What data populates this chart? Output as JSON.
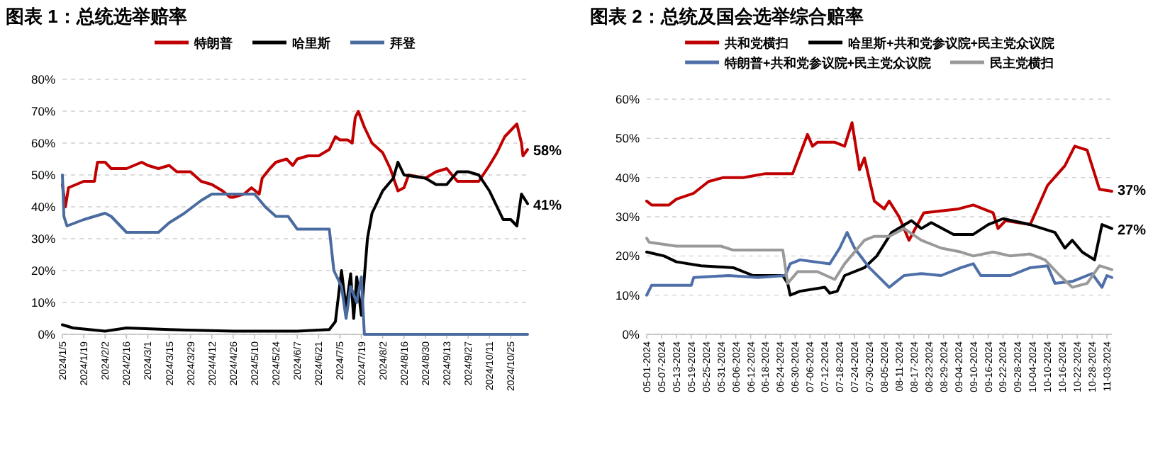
{
  "chart_data": [
    {
      "type": "line",
      "title": "图表 1：总统选举赔率",
      "legend": "top",
      "grid": "y",
      "xlim": [
        "2024-01-05",
        "2024-11-05"
      ],
      "ylim": [
        0,
        80
      ],
      "yticks": [
        {
          "value": 0,
          "label": "0%"
        },
        {
          "value": 10,
          "label": "10%"
        },
        {
          "value": 20,
          "label": "20%"
        },
        {
          "value": 30,
          "label": "30%"
        },
        {
          "value": 40,
          "label": "40%"
        },
        {
          "value": 50,
          "label": "50%"
        },
        {
          "value": 60,
          "label": "60%"
        },
        {
          "value": 70,
          "label": "70%"
        },
        {
          "value": 80,
          "label": "80%"
        }
      ],
      "xticks": [
        {
          "value": "2024-01-05",
          "label": "2024/1/5"
        },
        {
          "value": "2024-01-19",
          "label": "2024/1/19"
        },
        {
          "value": "2024-02-02",
          "label": "2024/2/2"
        },
        {
          "value": "2024-02-16",
          "label": "2024/2/16"
        },
        {
          "value": "2024-03-01",
          "label": "2024/3/1"
        },
        {
          "value": "2024-03-15",
          "label": "2024/3/15"
        },
        {
          "value": "2024-03-29",
          "label": "2024/3/29"
        },
        {
          "value": "2024-04-12",
          "label": "2024/4/12"
        },
        {
          "value": "2024-04-26",
          "label": "2024/4/26"
        },
        {
          "value": "2024-05-10",
          "label": "2024/5/10"
        },
        {
          "value": "2024-05-24",
          "label": "2024/5/24"
        },
        {
          "value": "2024-06-07",
          "label": "2024/6/7"
        },
        {
          "value": "2024-06-21",
          "label": "2024/6/21"
        },
        {
          "value": "2024-07-05",
          "label": "2024/7/5"
        },
        {
          "value": "2024-07-19",
          "label": "2024/7/19"
        },
        {
          "value": "2024-08-02",
          "label": "2024/8/2"
        },
        {
          "value": "2024-08-16",
          "label": "2024/8/16"
        },
        {
          "value": "2024-08-30",
          "label": "2024/8/30"
        },
        {
          "value": "2024-09-13",
          "label": "2024/9/13"
        },
        {
          "value": "2024-09-27",
          "label": "2024/9/27"
        },
        {
          "value": "2024-10-11",
          "label": "2024/10/11"
        },
        {
          "value": "2024-10-25",
          "label": "2024/10/25"
        }
      ],
      "series": [
        {
          "name": "特朗普",
          "color": "#c00000",
          "x": [
            "2024-01-05",
            "2024-01-07",
            "2024-01-09",
            "2024-01-14",
            "2024-01-19",
            "2024-01-26",
            "2024-01-28",
            "2024-02-02",
            "2024-02-06",
            "2024-02-16",
            "2024-02-26",
            "2024-03-01",
            "2024-03-08",
            "2024-03-15",
            "2024-03-20",
            "2024-03-29",
            "2024-04-05",
            "2024-04-12",
            "2024-04-19",
            "2024-04-24",
            "2024-04-26",
            "2024-05-03",
            "2024-05-08",
            "2024-05-13",
            "2024-05-15",
            "2024-05-20",
            "2024-05-24",
            "2024-05-31",
            "2024-06-04",
            "2024-06-07",
            "2024-06-14",
            "2024-06-21",
            "2024-06-28",
            "2024-07-02",
            "2024-07-05",
            "2024-07-10",
            "2024-07-13",
            "2024-07-15",
            "2024-07-17",
            "2024-07-21",
            "2024-07-26",
            "2024-08-02",
            "2024-08-07",
            "2024-08-12",
            "2024-08-16",
            "2024-08-19",
            "2024-08-30",
            "2024-09-06",
            "2024-09-13",
            "2024-09-20",
            "2024-09-27",
            "2024-10-04",
            "2024-10-11",
            "2024-10-16",
            "2024-10-21",
            "2024-10-25",
            "2024-10-29",
            "2024-11-01",
            "2024-11-02",
            "2024-11-05"
          ],
          "values": [
            47,
            40,
            46,
            47,
            48,
            48,
            54,
            54,
            52,
            52,
            54,
            53,
            52,
            53,
            51,
            51,
            48,
            47,
            45,
            43,
            43,
            44,
            46,
            44,
            49,
            52,
            54,
            55,
            53,
            55,
            56,
            56,
            58,
            62,
            61,
            61,
            60,
            68,
            70,
            65,
            60,
            57,
            52,
            45,
            46,
            50,
            49,
            51,
            52,
            48,
            48,
            48,
            53,
            57,
            62,
            64,
            66,
            60,
            56,
            58
          ]
        },
        {
          "name": "哈里斯",
          "color": "#000000",
          "x": [
            "2024-01-05",
            "2024-01-12",
            "2024-02-02",
            "2024-02-16",
            "2024-03-15",
            "2024-04-26",
            "2024-06-07",
            "2024-06-28",
            "2024-07-02",
            "2024-07-06",
            "2024-07-09",
            "2024-07-12",
            "2024-07-14",
            "2024-07-16",
            "2024-07-19",
            "2024-07-21",
            "2024-07-23",
            "2024-07-26",
            "2024-08-02",
            "2024-08-09",
            "2024-08-12",
            "2024-08-16",
            "2024-08-30",
            "2024-09-06",
            "2024-09-13",
            "2024-09-20",
            "2024-09-27",
            "2024-10-04",
            "2024-10-11",
            "2024-10-16",
            "2024-10-20",
            "2024-10-25",
            "2024-10-29",
            "2024-11-01",
            "2024-11-05"
          ],
          "values": [
            3,
            2,
            1,
            2,
            1.5,
            1,
            1,
            1.5,
            4,
            20,
            8,
            19,
            5,
            18,
            6,
            18,
            30,
            38,
            45,
            49,
            54,
            50,
            49,
            47,
            47,
            51,
            51,
            50,
            45,
            40,
            36,
            36,
            34,
            44,
            41
          ]
        },
        {
          "name": "拜登",
          "color": "#4a6ba0",
          "x": [
            "2024-01-05",
            "2024-01-06",
            "2024-01-08",
            "2024-01-19",
            "2024-02-02",
            "2024-02-06",
            "2024-02-16",
            "2024-03-01",
            "2024-03-08",
            "2024-03-15",
            "2024-03-25",
            "2024-04-05",
            "2024-04-12",
            "2024-04-26",
            "2024-05-10",
            "2024-05-17",
            "2024-05-24",
            "2024-06-01",
            "2024-06-07",
            "2024-06-21",
            "2024-06-28",
            "2024-07-01",
            "2024-07-06",
            "2024-07-09",
            "2024-07-12",
            "2024-07-16",
            "2024-07-19",
            "2024-07-21",
            "2024-11-05"
          ],
          "values": [
            50,
            37,
            34,
            36,
            38,
            37,
            32,
            32,
            32,
            35,
            38,
            42,
            44,
            44,
            44,
            40,
            37,
            37,
            33,
            33,
            33,
            20,
            15,
            5,
            15,
            10,
            18,
            0,
            0
          ]
        }
      ],
      "annotations": [
        {
          "text": "58%",
          "x": "2024-11-05",
          "y": 58
        },
        {
          "text": "41%",
          "x": "2024-11-05",
          "y": 41
        }
      ]
    },
    {
      "type": "line",
      "title": "图表 2：总统及国会选举综合赔率",
      "legend": "top",
      "grid": "y",
      "xlim": [
        "2024-05-01",
        "2024-11-05"
      ],
      "ylim": [
        0,
        60
      ],
      "yticks": [
        {
          "value": 0,
          "label": "0%"
        },
        {
          "value": 10,
          "label": "10%"
        },
        {
          "value": 20,
          "label": "20%"
        },
        {
          "value": 30,
          "label": "30%"
        },
        {
          "value": 40,
          "label": "40%"
        },
        {
          "value": 50,
          "label": "50%"
        },
        {
          "value": 60,
          "label": "60%"
        }
      ],
      "xticks": [
        {
          "value": "2024-05-01",
          "label": "05-01-2024"
        },
        {
          "value": "2024-05-07",
          "label": "05-07-2024"
        },
        {
          "value": "2024-05-13",
          "label": "05-13-2024"
        },
        {
          "value": "2024-05-19",
          "label": "05-19-2024"
        },
        {
          "value": "2024-05-25",
          "label": "05-25-2024"
        },
        {
          "value": "2024-05-31",
          "label": "05-31-2024"
        },
        {
          "value": "2024-06-06",
          "label": "06-06-2024"
        },
        {
          "value": "2024-06-12",
          "label": "06-12-2024"
        },
        {
          "value": "2024-06-18",
          "label": "06-18-2024"
        },
        {
          "value": "2024-06-24",
          "label": "06-24-2024"
        },
        {
          "value": "2024-06-30",
          "label": "06-30-2024"
        },
        {
          "value": "2024-07-06",
          "label": "07-06-2024"
        },
        {
          "value": "2024-07-12",
          "label": "07-12-2024"
        },
        {
          "value": "2024-07-18",
          "label": "07-18-2024"
        },
        {
          "value": "2024-07-24",
          "label": "07-24-2024"
        },
        {
          "value": "2024-07-30",
          "label": "07-30-2024"
        },
        {
          "value": "2024-08-05",
          "label": "08-05-2024"
        },
        {
          "value": "2024-08-11",
          "label": "08-11-2024"
        },
        {
          "value": "2024-08-17",
          "label": "08-17-2024"
        },
        {
          "value": "2024-08-23",
          "label": "08-23-2024"
        },
        {
          "value": "2024-08-29",
          "label": "08-29-2024"
        },
        {
          "value": "2024-09-04",
          "label": "09-04-2024"
        },
        {
          "value": "2024-09-10",
          "label": "09-10-2024"
        },
        {
          "value": "2024-09-16",
          "label": "09-16-2024"
        },
        {
          "value": "2024-09-22",
          "label": "09-22-2024"
        },
        {
          "value": "2024-09-28",
          "label": "09-28-2024"
        },
        {
          "value": "2024-10-04",
          "label": "10-04-2024"
        },
        {
          "value": "2024-10-10",
          "label": "10-10-2024"
        },
        {
          "value": "2024-10-16",
          "label": "10-16-2024"
        },
        {
          "value": "2024-10-22",
          "label": "10-22-2024"
        },
        {
          "value": "2024-10-28",
          "label": "10-28-2024"
        },
        {
          "value": "2024-11-03",
          "label": "11-03-2024"
        }
      ],
      "series": [
        {
          "name": "共和党横扫",
          "color": "#c00000",
          "x": [
            "2024-05-01",
            "2024-05-03",
            "2024-05-10",
            "2024-05-13",
            "2024-05-20",
            "2024-05-26",
            "2024-06-01",
            "2024-06-09",
            "2024-06-18",
            "2024-06-29",
            "2024-07-02",
            "2024-07-05",
            "2024-07-07",
            "2024-07-09",
            "2024-07-16",
            "2024-07-20",
            "2024-07-23",
            "2024-07-26",
            "2024-07-28",
            "2024-08-01",
            "2024-08-05",
            "2024-08-07",
            "2024-08-11",
            "2024-08-15",
            "2024-08-21",
            "2024-09-04",
            "2024-09-10",
            "2024-09-18",
            "2024-09-20",
            "2024-09-23",
            "2024-10-03",
            "2024-10-10",
            "2024-10-17",
            "2024-10-21",
            "2024-10-26",
            "2024-10-31",
            "2024-11-05"
          ],
          "values": [
            34,
            33,
            33,
            34.5,
            36,
            39,
            40,
            40,
            41,
            41,
            46,
            51,
            48,
            49,
            49,
            48,
            54,
            42,
            45,
            34,
            32,
            34,
            30,
            24,
            31,
            32,
            33,
            31,
            27,
            29,
            28,
            38,
            43,
            48,
            47,
            37,
            36.5
          ]
        },
        {
          "name": "哈里斯+共和党参议院+民主党众议院",
          "color": "#000000",
          "x": [
            "2024-05-01",
            "2024-05-08",
            "2024-05-13",
            "2024-05-23",
            "2024-06-05",
            "2024-06-13",
            "2024-06-25",
            "2024-06-27",
            "2024-06-28",
            "2024-07-02",
            "2024-07-12",
            "2024-07-14",
            "2024-07-17",
            "2024-07-20",
            "2024-07-28",
            "2024-08-02",
            "2024-08-08",
            "2024-08-16",
            "2024-08-20",
            "2024-08-24",
            "2024-09-02",
            "2024-09-10",
            "2024-09-16",
            "2024-09-22",
            "2024-10-03",
            "2024-10-13",
            "2024-10-17",
            "2024-10-20",
            "2024-10-24",
            "2024-10-29",
            "2024-11-01",
            "2024-11-05"
          ],
          "values": [
            21,
            20,
            18.5,
            17.5,
            17,
            15,
            15,
            13,
            10,
            11,
            12,
            10.5,
            11,
            15,
            17,
            20,
            26,
            29,
            27,
            28.5,
            25.5,
            25.5,
            28,
            29.5,
            28,
            26,
            22,
            24,
            21,
            19,
            28,
            27
          ]
        },
        {
          "name": "特朗普+共和党参议院+民主党众议院",
          "color": "#4f6fa8",
          "x": [
            "2024-05-01",
            "2024-05-03",
            "2024-05-19",
            "2024-05-20",
            "2024-06-03",
            "2024-06-15",
            "2024-06-26",
            "2024-06-28",
            "2024-07-02",
            "2024-07-14",
            "2024-07-18",
            "2024-07-21",
            "2024-07-24",
            "2024-07-30",
            "2024-08-07",
            "2024-08-13",
            "2024-08-20",
            "2024-08-28",
            "2024-09-05",
            "2024-09-10",
            "2024-09-13",
            "2024-09-25",
            "2024-10-03",
            "2024-10-10",
            "2024-10-13",
            "2024-10-20",
            "2024-10-28",
            "2024-11-01",
            "2024-11-03",
            "2024-11-05"
          ],
          "values": [
            10,
            12.5,
            12.5,
            14.5,
            15,
            14.5,
            15,
            18,
            19,
            18,
            22,
            26,
            22,
            17,
            12,
            15,
            15.5,
            15,
            17,
            18,
            15,
            15,
            17,
            17.5,
            13,
            13.5,
            15.5,
            12,
            15,
            14.5
          ]
        },
        {
          "name": "民主党横扫",
          "color": "#999999",
          "x": [
            "2024-05-01",
            "2024-05-02",
            "2024-05-13",
            "2024-05-31",
            "2024-06-05",
            "2024-06-25",
            "2024-06-27",
            "2024-07-01",
            "2024-07-09",
            "2024-07-16",
            "2024-07-20",
            "2024-07-28",
            "2024-08-01",
            "2024-08-07",
            "2024-08-13",
            "2024-08-20",
            "2024-08-28",
            "2024-09-05",
            "2024-09-10",
            "2024-09-18",
            "2024-09-25",
            "2024-10-03",
            "2024-10-09",
            "2024-10-15",
            "2024-10-20",
            "2024-10-26",
            "2024-10-31",
            "2024-11-05"
          ],
          "values": [
            24.5,
            23.5,
            22.5,
            22.5,
            21.5,
            21.5,
            13,
            16,
            16,
            14,
            18,
            24,
            25,
            25,
            27,
            24,
            22,
            21,
            20,
            21,
            20,
            20.5,
            19,
            15,
            12,
            13,
            17.5,
            16.5
          ]
        }
      ],
      "annotations": [
        {
          "text": "37%",
          "x": "2024-11-05",
          "y": 37
        },
        {
          "text": "27%",
          "x": "2024-11-05",
          "y": 27
        }
      ]
    }
  ]
}
